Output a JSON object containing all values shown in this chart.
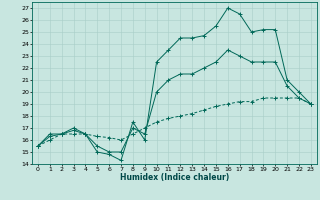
{
  "xlabel": "Humidex (Indice chaleur)",
  "bg_color": "#c8e6e0",
  "grid_color": "#a8cec8",
  "line_color": "#006858",
  "xlim": [
    -0.5,
    23.5
  ],
  "ylim": [
    14,
    27.5
  ],
  "xticks": [
    0,
    1,
    2,
    3,
    4,
    5,
    6,
    7,
    8,
    9,
    10,
    11,
    12,
    13,
    14,
    15,
    16,
    17,
    18,
    19,
    20,
    21,
    22,
    23
  ],
  "yticks": [
    14,
    15,
    16,
    17,
    18,
    19,
    20,
    21,
    22,
    23,
    24,
    25,
    26,
    27
  ],
  "line_max_x": [
    0,
    1,
    2,
    3,
    4,
    5,
    6,
    7,
    8,
    9,
    10,
    11,
    12,
    13,
    14,
    15,
    16,
    17,
    18,
    19,
    20,
    21,
    22,
    23
  ],
  "line_max_y": [
    15.5,
    16.5,
    16.5,
    17.0,
    16.5,
    15.0,
    14.8,
    14.3,
    17.5,
    16.0,
    22.5,
    23.5,
    24.5,
    24.5,
    24.7,
    25.5,
    27.0,
    26.5,
    25.0,
    25.2,
    25.2,
    21.0,
    20.0,
    19.0
  ],
  "line_min_x": [
    0,
    1,
    2,
    3,
    4,
    5,
    6,
    7,
    8,
    9,
    10,
    11,
    12,
    13,
    14,
    15,
    16,
    17,
    18,
    19,
    20,
    21,
    22,
    23
  ],
  "line_min_y": [
    15.5,
    16.0,
    16.5,
    16.5,
    16.5,
    16.3,
    16.2,
    16.0,
    16.5,
    17.0,
    17.5,
    17.8,
    18.0,
    18.2,
    18.5,
    18.8,
    19.0,
    19.2,
    19.2,
    19.5,
    19.5,
    19.5,
    19.5,
    19.0
  ],
  "line_mean_x": [
    0,
    1,
    2,
    3,
    4,
    5,
    6,
    7,
    8,
    9,
    10,
    11,
    12,
    13,
    14,
    15,
    16,
    17,
    18,
    19,
    20,
    21,
    22,
    23
  ],
  "line_mean_y": [
    15.5,
    16.3,
    16.5,
    16.8,
    16.5,
    15.5,
    15.0,
    15.0,
    17.0,
    16.5,
    20.0,
    21.0,
    21.5,
    21.5,
    22.0,
    22.5,
    23.5,
    23.0,
    22.5,
    22.5,
    22.5,
    20.5,
    19.5,
    19.0
  ]
}
